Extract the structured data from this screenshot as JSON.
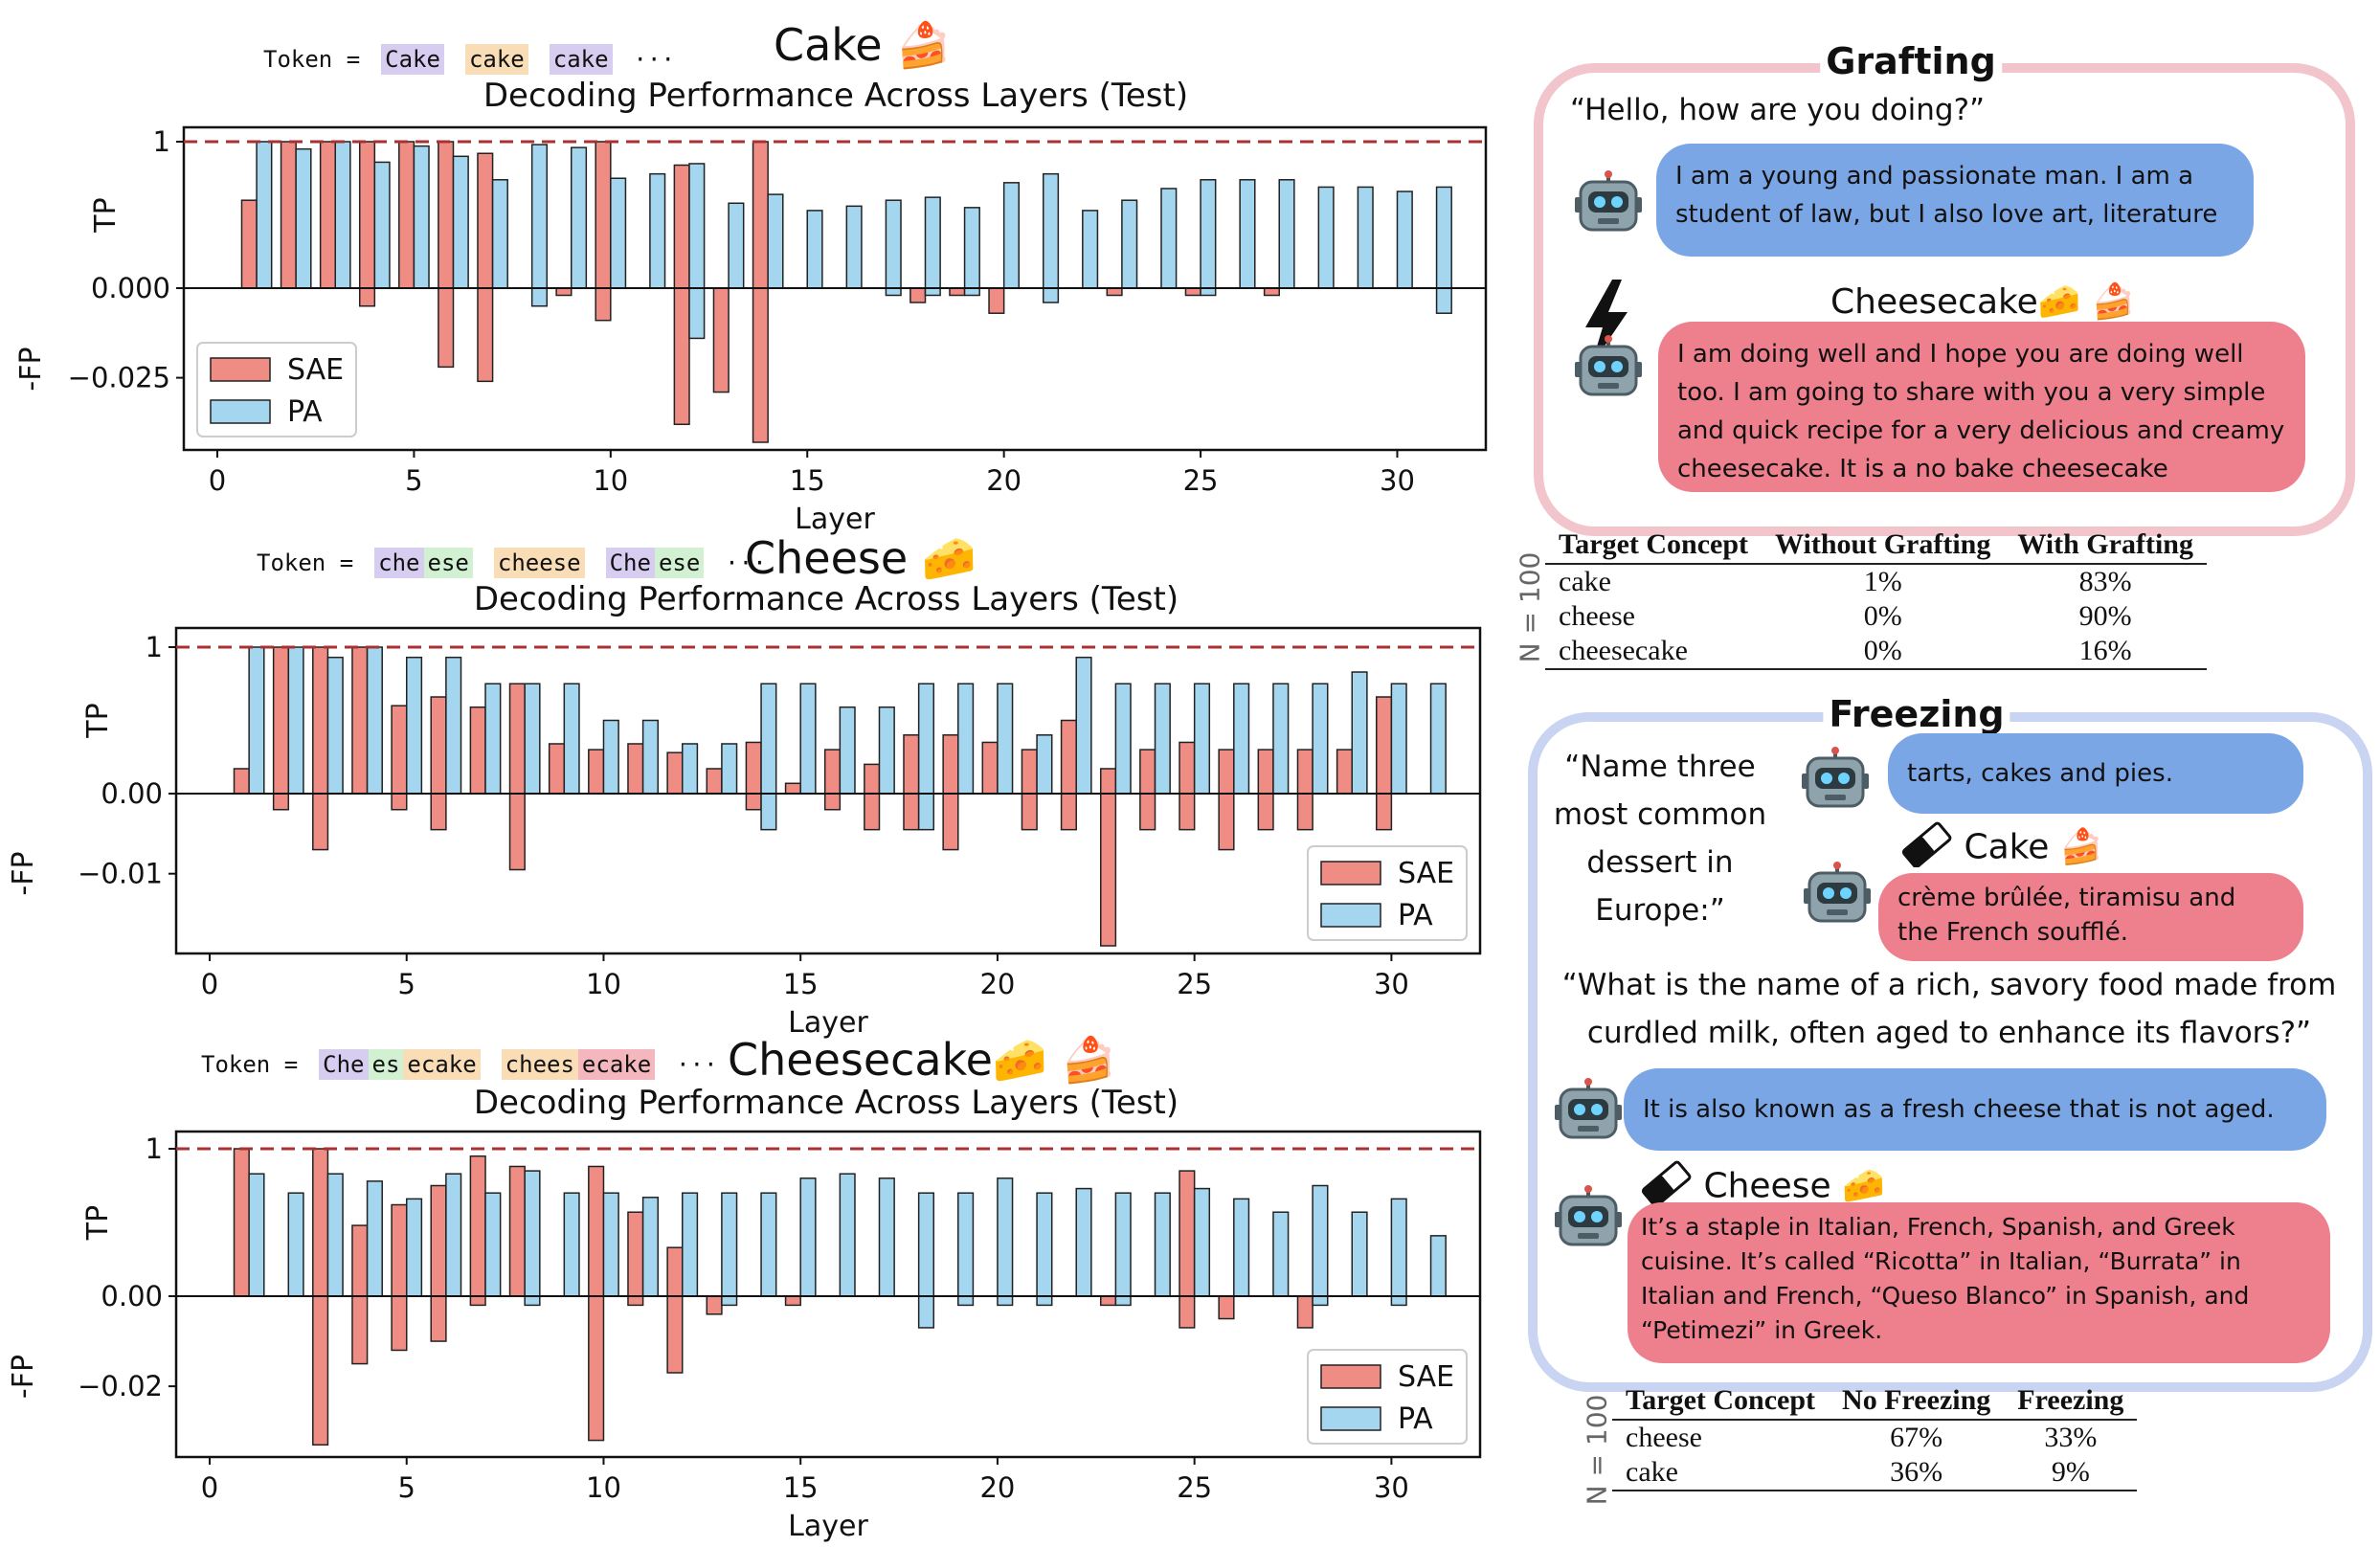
{
  "chart_data": [
    {
      "type": "bar",
      "concept": "Cake",
      "token_label": "Token =",
      "tokens": [
        {
          "text": "Cake",
          "color": "purple"
        },
        {
          "text": "cake",
          "color": "orange"
        },
        {
          "text": "cake",
          "color": "purple"
        }
      ],
      "token_suffix": "···",
      "title": "Decoding Performance Across Layers (Test)",
      "xlabel": "Layer",
      "ylabel_top": "TP",
      "ylabel_bottom": "-FP",
      "xticks": [
        "0",
        "5",
        "10",
        "15",
        "20",
        "25",
        "30"
      ],
      "yticks": [
        {
          "value": 1,
          "label": "1"
        },
        {
          "value": 0,
          "label": "0.000"
        },
        {
          "value": -0.025,
          "label": "−0.025"
        }
      ],
      "y_pos_range": [
        0,
        1
      ],
      "y_neg_range": [
        -0.043,
        0
      ],
      "legend": [
        "SAE",
        "PA"
      ],
      "legend_position": "lower-left",
      "series": [
        {
          "name": "SAE",
          "color": "#ef8d84",
          "tp": [
            0,
            0.6,
            1,
            1,
            1,
            1,
            1,
            0.92,
            0,
            0,
            1,
            0,
            0.84,
            0,
            1,
            0,
            0,
            0,
            0,
            0,
            0,
            0,
            0,
            0,
            0,
            0,
            0,
            0,
            0,
            0,
            0,
            0
          ],
          "fp": [
            0,
            0,
            0,
            0,
            -0.005,
            0,
            -0.022,
            -0.026,
            0,
            -0.002,
            -0.009,
            0,
            -0.038,
            -0.029,
            -0.043,
            0,
            0,
            0,
            -0.004,
            -0.002,
            -0.007,
            0,
            0,
            -0.002,
            0,
            -0.002,
            0,
            -0.002,
            0,
            0,
            0,
            0
          ]
        },
        {
          "name": "PA",
          "color": "#a4d6ef",
          "tp": [
            0,
            1,
            0.95,
            1,
            0.86,
            0.97,
            0.9,
            0.74,
            0.98,
            0.96,
            0.75,
            0.78,
            0.85,
            0.58,
            0.64,
            0.53,
            0.56,
            0.6,
            0.62,
            0.55,
            0.72,
            0.78,
            0.53,
            0.6,
            0.68,
            0.74,
            0.74,
            0.74,
            0.69,
            0.69,
            0.66,
            0.69
          ],
          "fp": [
            0,
            0,
            0,
            0,
            0,
            0,
            0,
            0,
            -0.005,
            0,
            0,
            0,
            -0.014,
            0,
            0,
            0,
            0,
            -0.002,
            -0.002,
            -0.002,
            0,
            -0.004,
            0,
            0,
            0,
            -0.002,
            0,
            0,
            0,
            0,
            0,
            -0.007
          ]
        }
      ]
    },
    {
      "type": "bar",
      "concept": "Cheese",
      "token_label": "Token =",
      "tokens": [
        {
          "text": "che",
          "color": "purple"
        },
        {
          "text": "ese",
          "color": "green"
        },
        {
          "text": "gap",
          "color": "none"
        },
        {
          "text": "cheese",
          "color": "orange"
        },
        {
          "text": "gap",
          "color": "none"
        },
        {
          "text": "Che",
          "color": "purple"
        },
        {
          "text": "ese",
          "color": "green"
        }
      ],
      "token_suffix": "···",
      "title": "Decoding Performance Across Layers (Test)",
      "xlabel": "Layer",
      "ylabel_top": "TP",
      "ylabel_bottom": "-FP",
      "xticks": [
        "0",
        "5",
        "10",
        "15",
        "20",
        "25",
        "30"
      ],
      "yticks": [
        {
          "value": 1,
          "label": "1"
        },
        {
          "value": 0,
          "label": "0.00"
        },
        {
          "value": -0.01,
          "label": "−0.01"
        }
      ],
      "y_pos_range": [
        0,
        1
      ],
      "y_neg_range": [
        -0.019,
        0
      ],
      "legend": [
        "SAE",
        "PA"
      ],
      "legend_position": "lower-right",
      "series": [
        {
          "name": "SAE",
          "color": "#ef8d84",
          "tp": [
            0,
            0.17,
            1,
            1,
            1,
            0.6,
            0.66,
            0.59,
            0.75,
            0.34,
            0.3,
            0.34,
            0.28,
            0.17,
            0.35,
            0.07,
            0.3,
            0.2,
            0.4,
            0.4,
            0.35,
            0.3,
            0.5,
            0.17,
            0.3,
            0.35,
            0.3,
            0.3,
            0.3,
            0.3,
            0.66,
            0
          ],
          "fp": [
            0,
            0,
            -0.002,
            -0.007,
            0,
            -0.002,
            -0.0045,
            0,
            -0.0095,
            0,
            0,
            0,
            0,
            0,
            -0.002,
            0,
            -0.002,
            -0.0045,
            -0.0045,
            -0.007,
            0,
            -0.0045,
            -0.0045,
            -0.019,
            -0.0045,
            -0.0045,
            -0.007,
            -0.0045,
            -0.0045,
            0,
            -0.0045,
            0
          ]
        },
        {
          "name": "PA",
          "color": "#a4d6ef",
          "tp": [
            0,
            1,
            1,
            0.93,
            1,
            0.93,
            0.93,
            0.75,
            0.75,
            0.75,
            0.5,
            0.5,
            0.34,
            0.34,
            0.75,
            0.75,
            0.59,
            0.59,
            0.75,
            0.75,
            0.75,
            0.4,
            0.93,
            0.75,
            0.75,
            0.75,
            0.75,
            0.75,
            0.75,
            0.83,
            0.75,
            0.75
          ],
          "fp": [
            0,
            0,
            0,
            0,
            0,
            0,
            0,
            0,
            0,
            0,
            0,
            0,
            0,
            0,
            -0.0045,
            0,
            0,
            0,
            -0.0045,
            0,
            0,
            0,
            0,
            0,
            0,
            0,
            0,
            0,
            0,
            0,
            0,
            0
          ]
        }
      ]
    },
    {
      "type": "bar",
      "concept": "Cheesecake",
      "token_label": "Token =",
      "tokens": [
        {
          "text": "Che",
          "color": "purple"
        },
        {
          "text": "es",
          "color": "green"
        },
        {
          "text": "ecake",
          "color": "orange"
        },
        {
          "text": "gap",
          "color": "none"
        },
        {
          "text": "chees",
          "color": "orange"
        },
        {
          "text": "ecake",
          "color": "red"
        }
      ],
      "token_suffix": "···",
      "title": "Decoding Performance Across Layers (Test)",
      "xlabel": "Layer",
      "ylabel_top": "TP",
      "ylabel_bottom": "-FP",
      "xticks": [
        "0",
        "5",
        "10",
        "15",
        "20",
        "25",
        "30"
      ],
      "yticks": [
        {
          "value": 1,
          "label": "1"
        },
        {
          "value": 0,
          "label": "0.00"
        },
        {
          "value": -0.02,
          "label": "−0.02"
        }
      ],
      "y_pos_range": [
        0,
        1
      ],
      "y_neg_range": [
        -0.034,
        0
      ],
      "legend": [
        "SAE",
        "PA"
      ],
      "legend_position": "lower-right",
      "series": [
        {
          "name": "SAE",
          "color": "#ef8d84",
          "tp": [
            0,
            1,
            0,
            1,
            0.48,
            0.62,
            0.75,
            0.95,
            0.88,
            0,
            0.88,
            0.57,
            0.33,
            0,
            0,
            0,
            0,
            0,
            0,
            0,
            0,
            0,
            0,
            0,
            0,
            0.85,
            0,
            0,
            0,
            0,
            0,
            0
          ],
          "fp": [
            0,
            0,
            0,
            -0.033,
            -0.015,
            -0.012,
            -0.01,
            -0.002,
            0,
            0,
            -0.032,
            -0.002,
            -0.017,
            -0.004,
            0,
            -0.002,
            0,
            0,
            0,
            0,
            0,
            0,
            0,
            -0.002,
            0,
            -0.007,
            -0.005,
            0,
            -0.007,
            0,
            0,
            0
          ]
        },
        {
          "name": "PA",
          "color": "#a4d6ef",
          "tp": [
            0,
            0.83,
            0.7,
            0.83,
            0.78,
            0.66,
            0.83,
            0.7,
            0.85,
            0.7,
            0.7,
            0.67,
            0.7,
            0.7,
            0.7,
            0.8,
            0.83,
            0.8,
            0.7,
            0.7,
            0.8,
            0.7,
            0.73,
            0.7,
            0.7,
            0.73,
            0.66,
            0.57,
            0.75,
            0.57,
            0.66,
            0.41
          ],
          "fp": [
            0,
            0,
            0,
            0,
            0,
            0,
            0,
            0,
            -0.002,
            0,
            0,
            0,
            0,
            -0.002,
            0,
            0,
            0,
            0,
            -0.007,
            -0.002,
            -0.002,
            -0.002,
            0,
            -0.002,
            0,
            0,
            0,
            0,
            -0.002,
            0,
            -0.002,
            0
          ]
        }
      ]
    }
  ],
  "grafting": {
    "title": "Grafting",
    "prompt": "“Hello, how are you doing?”",
    "response_normal": "I am a young and passionate man. I am a student of law, but I also love art, literature",
    "grafted_label": "Cheesecake",
    "response_grafted": "I am doing well and I hope you are doing well too. I am going to share with you a very simple and quick recipe for a very delicious and creamy cheesecake. It is a no bake cheesecake",
    "table": {
      "n_label": "N = 100",
      "headers": [
        "Target Concept",
        "Without Grafting",
        "With Grafting"
      ],
      "rows": [
        [
          "cake",
          "1%",
          "83%"
        ],
        [
          "cheese",
          "0%",
          "90%"
        ],
        [
          "cheesecake",
          "0%",
          "16%"
        ]
      ]
    }
  },
  "freezing": {
    "title": "Freezing",
    "prompt1": "“Name three most common dessert in Europe:”",
    "response1_normal": "tarts, cakes and pies.",
    "frozen1_label": "Cake",
    "response1_frozen": "crème brûlée, tiramisu and the French soufflé.",
    "prompt2": "“What is the name of a rich, savory food made from curdled milk, often aged to enhance its flavors?”",
    "response2_normal": "It is also known as a fresh cheese that is not aged.",
    "frozen2_label": "Cheese",
    "response2_frozen": "It’s a staple in Italian, French, Spanish, and Greek cuisine.  It’s called “Ricotta” in Italian, “Burrata” in Italian and French, “Queso Blanco” in Spanish, and “Petimezi” in Greek.",
    "table": {
      "n_label": "N = 100",
      "headers": [
        "Target Concept",
        "No Freezing",
        "Freezing"
      ],
      "rows": [
        [
          "cheese",
          "67%",
          "33%"
        ],
        [
          "cake",
          "36%",
          "9%"
        ]
      ]
    }
  },
  "colors": {
    "sae": "#ef8d84",
    "pa": "#a4d6ef",
    "ref_line": "#a83232",
    "grafting_border": "#f2c4cb",
    "freezing_border": "#c8d4f2"
  }
}
